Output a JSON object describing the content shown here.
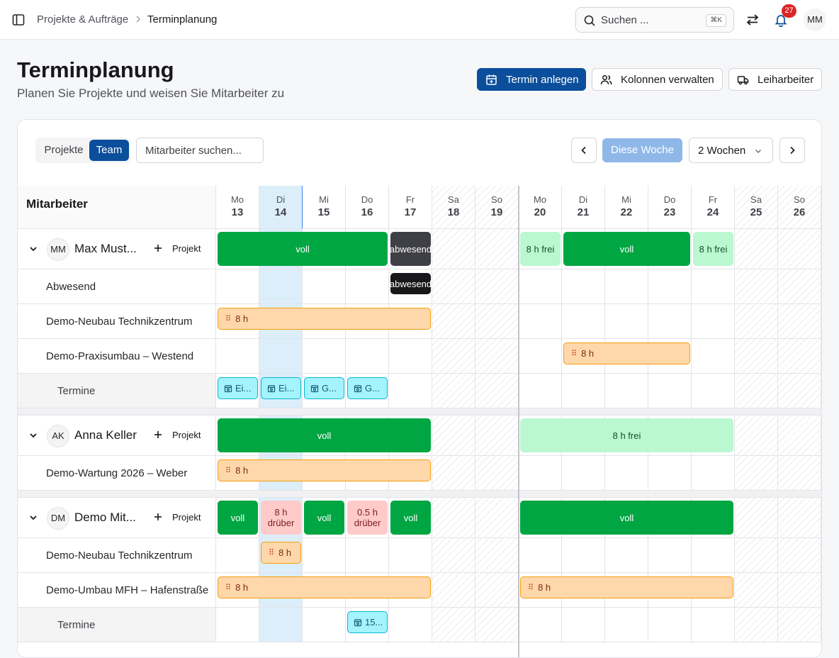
{
  "breadcrumb": {
    "parent": "Projekte & Aufträge",
    "current": "Terminplanung"
  },
  "search": {
    "placeholder": "Suchen ...",
    "shortcut": "⌘K"
  },
  "notifications": {
    "count": "27"
  },
  "user": {
    "initials": "MM"
  },
  "page": {
    "title": "Terminplanung",
    "subtitle": "Planen Sie Projekte und weisen Sie Mitarbeiter zu"
  },
  "actions": {
    "new_appointment": "Termin anlegen",
    "manage_columns": "Kolonnen verwalten",
    "temp_workers": "Leiharbeiter"
  },
  "toolbar": {
    "view_projects": "Projekte",
    "view_team": "Team",
    "employee_search_placeholder": "Mitarbeiter suchen...",
    "this_week": "Diese Woche",
    "range": "2 Wochen"
  },
  "grid": {
    "column_header": "Mitarbeiter",
    "days": [
      {
        "name": "Mo",
        "date": "13"
      },
      {
        "name": "Di",
        "date": "14"
      },
      {
        "name": "Mi",
        "date": "15"
      },
      {
        "name": "Do",
        "date": "16"
      },
      {
        "name": "Fr",
        "date": "17"
      },
      {
        "name": "Sa",
        "date": "18"
      },
      {
        "name": "So",
        "date": "19"
      },
      {
        "name": "Mo",
        "date": "20"
      },
      {
        "name": "Di",
        "date": "21"
      },
      {
        "name": "Mi",
        "date": "22"
      },
      {
        "name": "Do",
        "date": "23"
      },
      {
        "name": "Fr",
        "date": "24"
      },
      {
        "name": "Sa",
        "date": "25"
      },
      {
        "name": "So",
        "date": "26"
      }
    ],
    "add_project_label": "Projekt",
    "termine_label": "Termine"
  },
  "employees": [
    {
      "initials": "MM",
      "name": "Max Must...",
      "summary": [
        {
          "label": "voll",
          "status": "full"
        },
        {
          "label": "abwesend",
          "status": "absent"
        },
        {
          "label": "8 h frei",
          "status": "free"
        },
        {
          "label": "voll",
          "status": "full"
        },
        {
          "label": "8 h frei",
          "status": "free"
        }
      ],
      "rows": [
        {
          "label": "Abwesend",
          "bars": [
            {
              "label": "abwesend",
              "status": "absent"
            }
          ]
        },
        {
          "label": "Demo-Neubau Technikzentrum",
          "bars": [
            {
              "label": "8 h"
            }
          ]
        },
        {
          "label": "Demo-Praxisumbau – Westend",
          "bars": [
            {
              "label": "8 h"
            }
          ]
        }
      ],
      "termine": [
        "Ei...",
        "Ei...",
        "G...",
        "G..."
      ]
    },
    {
      "initials": "AK",
      "name": "Anna Keller",
      "summary": [
        {
          "label": "voll",
          "status": "full"
        },
        {
          "label": "8 h frei",
          "status": "free"
        }
      ],
      "rows": [
        {
          "label": "Demo-Wartung 2026 – Weber",
          "bars": [
            {
              "label": "8 h"
            }
          ]
        }
      ]
    },
    {
      "initials": "DM",
      "name": "Demo Mit...",
      "summary": [
        {
          "label": "voll",
          "status": "full"
        },
        {
          "label": "8 h drüber",
          "status": "over"
        },
        {
          "label": "voll",
          "status": "full"
        },
        {
          "label": "0.5 h drüber",
          "status": "over"
        },
        {
          "label": "voll",
          "status": "full"
        },
        {
          "label": "voll",
          "status": "full"
        }
      ],
      "rows": [
        {
          "label": "Demo-Neubau Technikzentrum",
          "bars": [
            {
              "label": "8 h"
            }
          ]
        },
        {
          "label": "Demo-Umbau MFH – Hafenstraße",
          "bars": [
            {
              "label": "8 h"
            },
            {
              "label": "8 h"
            }
          ]
        }
      ],
      "termine": [
        "15..."
      ]
    }
  ],
  "colors": {
    "primary": "#0b4f9c",
    "full": "#00a642",
    "free": "#bbf7d0",
    "over": "#fecaca",
    "project": "#fed7aa",
    "appointment": "#a5f3fc",
    "absent": "#3f3f46"
  }
}
